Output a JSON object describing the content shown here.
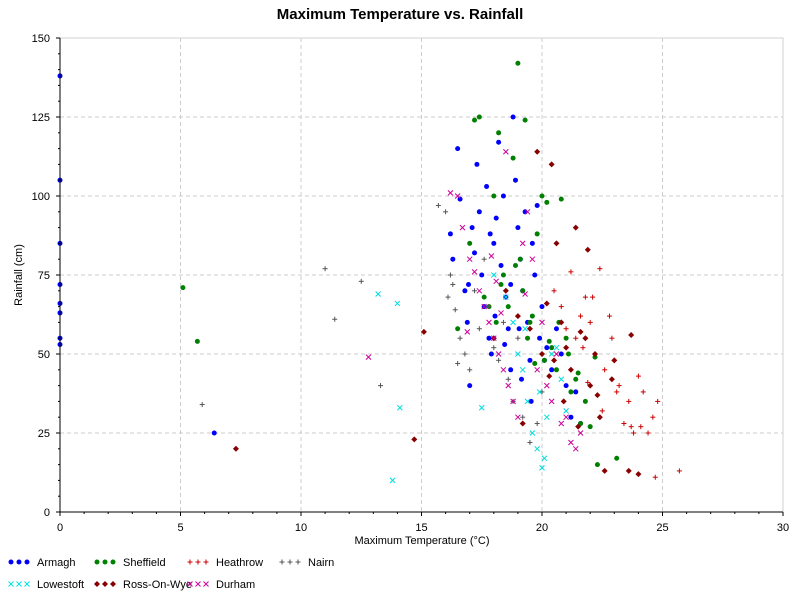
{
  "chart_data": {
    "type": "scatter",
    "title": "Maximum Temperature vs. Rainfall",
    "xlabel": "Maximum Temperature (°C)",
    "ylabel": "Rainfall (cm)",
    "xlim": [
      0,
      30
    ],
    "ylim": [
      0,
      150
    ],
    "xticks": [
      0,
      5,
      10,
      15,
      20,
      25,
      30
    ],
    "yticks": [
      0,
      25,
      50,
      75,
      100,
      125,
      150
    ],
    "grid": true,
    "legend_position": "bottom",
    "series": [
      {
        "name": "Armagh",
        "marker": "circle",
        "color": "#0000ff",
        "points": [
          [
            0,
            138
          ],
          [
            0,
            105
          ],
          [
            0,
            85
          ],
          [
            0,
            72
          ],
          [
            0,
            66
          ],
          [
            0,
            63
          ],
          [
            0,
            55
          ],
          [
            0,
            53
          ],
          [
            6.4,
            25
          ],
          [
            16.2,
            88
          ],
          [
            16.3,
            80
          ],
          [
            16.5,
            115
          ],
          [
            16.6,
            99
          ],
          [
            16.8,
            70
          ],
          [
            16.9,
            60
          ],
          [
            17.0,
            40
          ],
          [
            17.1,
            90
          ],
          [
            17.3,
            110
          ],
          [
            17.4,
            95
          ],
          [
            17.5,
            75
          ],
          [
            17.6,
            65
          ],
          [
            17.7,
            103
          ],
          [
            17.8,
            55
          ],
          [
            17.9,
            50
          ],
          [
            18.0,
            85
          ],
          [
            18.1,
            93
          ],
          [
            18.2,
            117
          ],
          [
            18.3,
            78
          ],
          [
            18.4,
            100
          ],
          [
            18.5,
            68
          ],
          [
            18.6,
            58
          ],
          [
            18.7,
            45
          ],
          [
            18.8,
            125
          ],
          [
            18.9,
            105
          ],
          [
            19.0,
            90
          ],
          [
            19.1,
            80
          ],
          [
            19.2,
            70
          ],
          [
            19.3,
            95
          ],
          [
            19.4,
            60
          ],
          [
            19.5,
            48
          ],
          [
            19.6,
            85
          ],
          [
            19.7,
            75
          ],
          [
            19.8,
            97
          ],
          [
            19.9,
            55
          ],
          [
            20.0,
            65
          ],
          [
            20.2,
            52
          ],
          [
            20.4,
            45
          ],
          [
            20.6,
            58
          ],
          [
            20.8,
            50
          ],
          [
            21.0,
            40
          ],
          [
            21.2,
            30
          ],
          [
            21.4,
            38
          ],
          [
            21.6,
            28
          ],
          [
            17.2,
            82
          ],
          [
            18.05,
            62
          ],
          [
            18.45,
            53
          ],
          [
            19.15,
            42
          ],
          [
            19.55,
            35
          ],
          [
            17.85,
            88
          ],
          [
            16.95,
            72
          ],
          [
            18.7,
            72
          ],
          [
            19.05,
            58
          ],
          [
            20.1,
            48
          ]
        ]
      },
      {
        "name": "Sheffield",
        "marker": "circle",
        "color": "#008000",
        "points": [
          [
            5.1,
            71
          ],
          [
            5.7,
            54
          ],
          [
            16.5,
            58
          ],
          [
            17.0,
            85
          ],
          [
            17.2,
            124
          ],
          [
            17.4,
            125
          ],
          [
            17.6,
            68
          ],
          [
            18.0,
            100
          ],
          [
            18.2,
            120
          ],
          [
            18.4,
            75
          ],
          [
            18.6,
            65
          ],
          [
            18.8,
            112
          ],
          [
            19.0,
            142
          ],
          [
            19.1,
            80
          ],
          [
            19.2,
            70
          ],
          [
            19.3,
            124
          ],
          [
            19.4,
            55
          ],
          [
            19.6,
            62
          ],
          [
            19.8,
            88
          ],
          [
            20.0,
            100
          ],
          [
            20.1,
            48
          ],
          [
            20.2,
            98
          ],
          [
            20.4,
            52
          ],
          [
            20.6,
            45
          ],
          [
            20.8,
            99
          ],
          [
            21.0,
            55
          ],
          [
            21.2,
            38
          ],
          [
            21.4,
            42
          ],
          [
            21.6,
            28
          ],
          [
            21.8,
            35
          ],
          [
            22.0,
            27
          ],
          [
            22.2,
            49
          ],
          [
            22.3,
            15
          ],
          [
            23.1,
            17
          ],
          [
            17.8,
            65
          ],
          [
            18.3,
            72
          ],
          [
            18.9,
            78
          ],
          [
            19.5,
            60
          ],
          [
            20.3,
            54
          ],
          [
            20.7,
            60
          ],
          [
            21.1,
            50
          ],
          [
            21.5,
            44
          ],
          [
            18.1,
            60
          ],
          [
            19.7,
            47
          ]
        ]
      },
      {
        "name": "Heathrow",
        "marker": "plus",
        "color": "#cc0000",
        "points": [
          [
            20.5,
            70
          ],
          [
            20.8,
            65
          ],
          [
            21.0,
            58
          ],
          [
            21.2,
            76
          ],
          [
            21.4,
            55
          ],
          [
            21.6,
            62
          ],
          [
            21.8,
            68
          ],
          [
            22.0,
            60
          ],
          [
            22.2,
            50
          ],
          [
            22.4,
            77
          ],
          [
            22.6,
            45
          ],
          [
            22.8,
            62
          ],
          [
            23.0,
            48
          ],
          [
            23.2,
            40
          ],
          [
            23.4,
            28
          ],
          [
            23.6,
            35
          ],
          [
            23.8,
            25
          ],
          [
            24.0,
            43
          ],
          [
            24.2,
            38
          ],
          [
            24.4,
            25
          ],
          [
            24.6,
            30
          ],
          [
            24.8,
            35
          ],
          [
            25.7,
            13
          ],
          [
            24.7,
            11
          ],
          [
            22.1,
            68
          ],
          [
            22.9,
            55
          ],
          [
            21.7,
            52
          ],
          [
            23.1,
            38
          ],
          [
            22.5,
            32
          ],
          [
            21.9,
            41
          ],
          [
            23.7,
            27
          ],
          [
            24.1,
            27
          ]
        ]
      },
      {
        "name": "Nairn",
        "marker": "plus",
        "color": "#555555",
        "points": [
          [
            5.9,
            34
          ],
          [
            11.0,
            77
          ],
          [
            11.4,
            61
          ],
          [
            12.5,
            73
          ],
          [
            13.3,
            40
          ],
          [
            15.7,
            97
          ],
          [
            16.0,
            95
          ],
          [
            16.2,
            75
          ],
          [
            16.4,
            64
          ],
          [
            16.6,
            55
          ],
          [
            16.8,
            50
          ],
          [
            17.0,
            45
          ],
          [
            17.2,
            70
          ],
          [
            17.4,
            58
          ],
          [
            17.6,
            80
          ],
          [
            17.8,
            65
          ],
          [
            18.0,
            52
          ],
          [
            18.2,
            48
          ],
          [
            18.4,
            60
          ],
          [
            18.6,
            42
          ],
          [
            18.8,
            35
          ],
          [
            19.0,
            55
          ],
          [
            19.2,
            30
          ],
          [
            19.5,
            22
          ],
          [
            19.8,
            28
          ],
          [
            20.0,
            38
          ],
          [
            16.1,
            68
          ],
          [
            16.3,
            72
          ],
          [
            16.5,
            47
          ]
        ]
      },
      {
        "name": "Lowestoft",
        "marker": "x",
        "color": "#00dddd",
        "points": [
          [
            13.2,
            69
          ],
          [
            13.8,
            10
          ],
          [
            14.0,
            66
          ],
          [
            14.1,
            33
          ],
          [
            17.5,
            33
          ],
          [
            18.0,
            75
          ],
          [
            18.5,
            68
          ],
          [
            18.8,
            60
          ],
          [
            19.0,
            50
          ],
          [
            19.2,
            45
          ],
          [
            19.4,
            35
          ],
          [
            19.6,
            25
          ],
          [
            19.8,
            20
          ],
          [
            20.0,
            14
          ],
          [
            20.2,
            30
          ],
          [
            20.4,
            50
          ],
          [
            20.6,
            52
          ],
          [
            20.8,
            42
          ],
          [
            21.0,
            32
          ],
          [
            19.3,
            58
          ],
          [
            20.1,
            17
          ],
          [
            19.9,
            38
          ]
        ]
      },
      {
        "name": "Ross-On-Wye",
        "marker": "diamond",
        "color": "#880000",
        "points": [
          [
            7.3,
            20
          ],
          [
            14.7,
            23
          ],
          [
            15.1,
            57
          ],
          [
            18.0,
            55
          ],
          [
            18.5,
            70
          ],
          [
            19.0,
            62
          ],
          [
            19.5,
            58
          ],
          [
            19.8,
            114
          ],
          [
            20.0,
            50
          ],
          [
            20.2,
            66
          ],
          [
            20.4,
            110
          ],
          [
            20.5,
            48
          ],
          [
            20.6,
            85
          ],
          [
            20.8,
            60
          ],
          [
            21.0,
            52
          ],
          [
            21.2,
            45
          ],
          [
            21.4,
            90
          ],
          [
            21.6,
            57
          ],
          [
            21.8,
            55
          ],
          [
            22.0,
            40
          ],
          [
            22.2,
            50
          ],
          [
            22.4,
            30
          ],
          [
            22.6,
            13
          ],
          [
            23.0,
            48
          ],
          [
            23.6,
            13
          ],
          [
            23.7,
            56
          ],
          [
            24.0,
            12
          ],
          [
            21.9,
            83
          ],
          [
            22.3,
            37
          ],
          [
            20.3,
            43
          ],
          [
            20.9,
            35
          ],
          [
            21.5,
            27
          ],
          [
            19.2,
            28
          ],
          [
            22.9,
            42
          ]
        ]
      },
      {
        "name": "Durham",
        "marker": "x",
        "color": "#cc0099",
        "points": [
          [
            12.8,
            49
          ],
          [
            16.2,
            101
          ],
          [
            16.5,
            100
          ],
          [
            16.7,
            90
          ],
          [
            17.0,
            80
          ],
          [
            17.2,
            76
          ],
          [
            17.4,
            70
          ],
          [
            17.6,
            65
          ],
          [
            17.8,
            60
          ],
          [
            18.0,
            55
          ],
          [
            18.2,
            50
          ],
          [
            18.4,
            45
          ],
          [
            18.6,
            40
          ],
          [
            18.8,
            35
          ],
          [
            19.0,
            30
          ],
          [
            19.2,
            85
          ],
          [
            19.4,
            95
          ],
          [
            19.6,
            80
          ],
          [
            19.8,
            45
          ],
          [
            20.0,
            60
          ],
          [
            20.2,
            40
          ],
          [
            20.4,
            35
          ],
          [
            20.6,
            50
          ],
          [
            20.8,
            28
          ],
          [
            21.0,
            30
          ],
          [
            21.2,
            22
          ],
          [
            21.4,
            20
          ],
          [
            21.6,
            25
          ],
          [
            18.5,
            114
          ],
          [
            17.9,
            81
          ],
          [
            18.1,
            73
          ],
          [
            19.3,
            69
          ],
          [
            16.9,
            57
          ],
          [
            18.3,
            63
          ]
        ]
      }
    ]
  }
}
